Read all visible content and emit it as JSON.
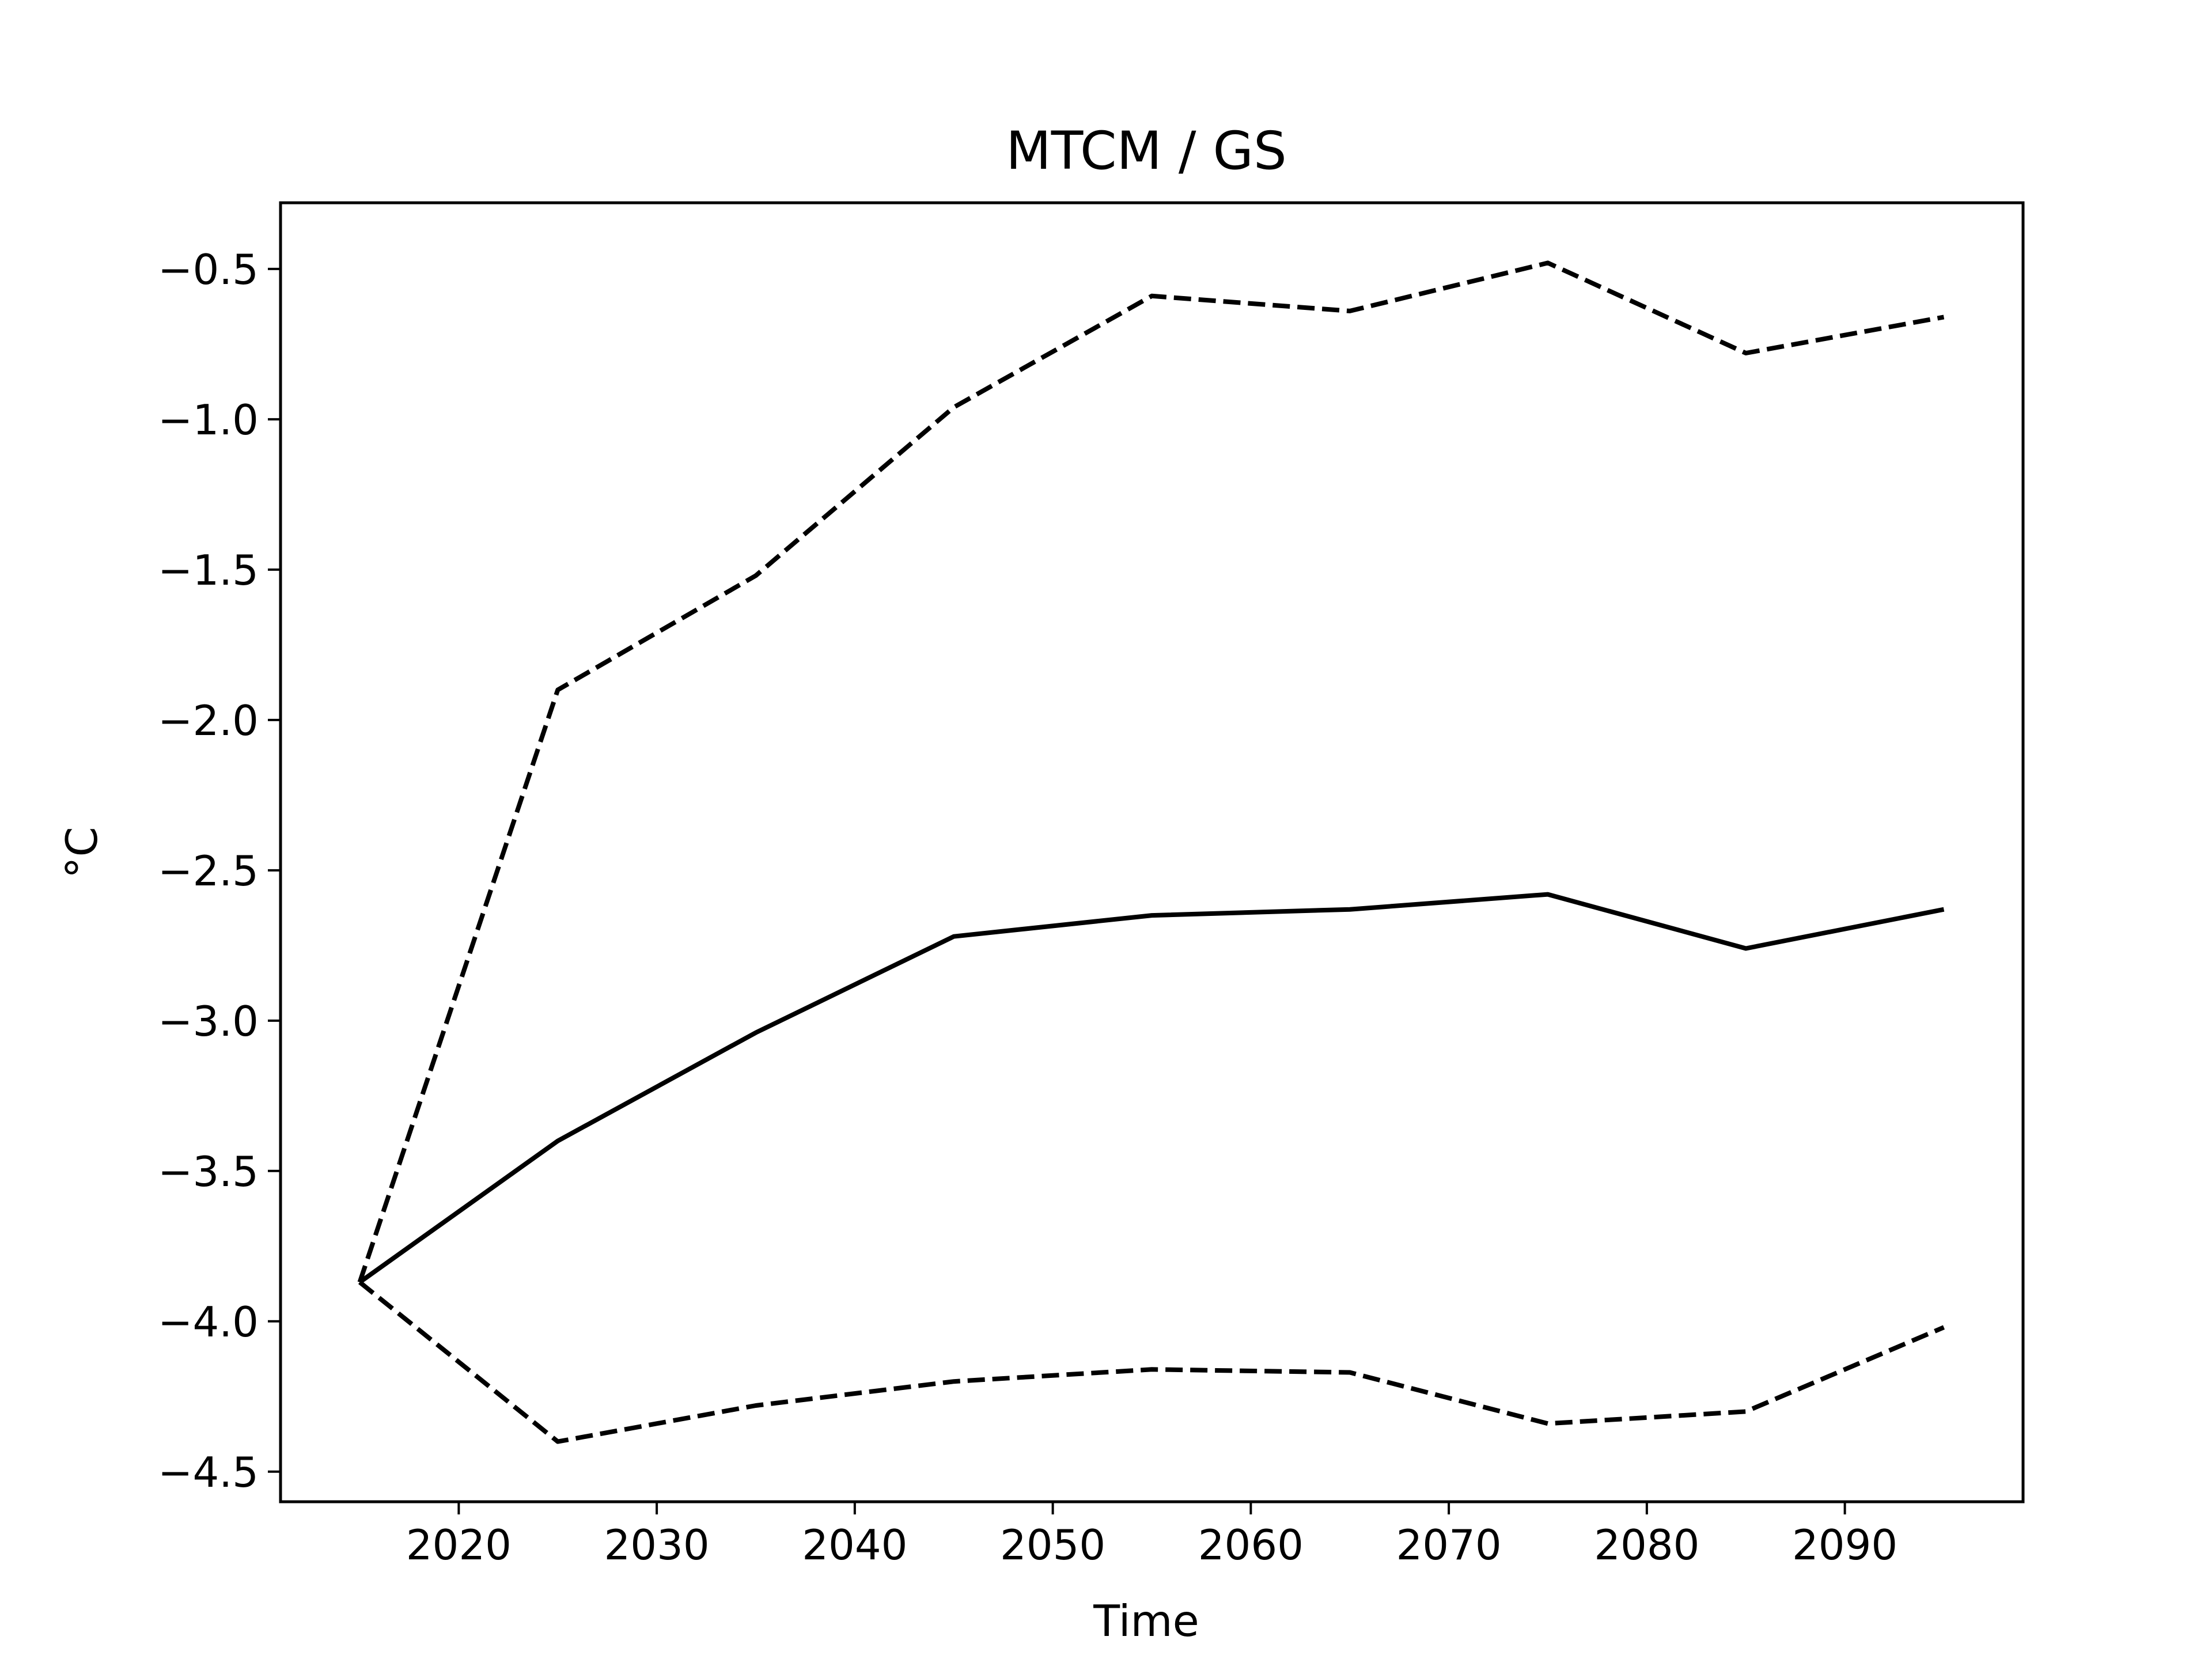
{
  "chart_data": {
    "type": "line",
    "title": "MTCM / GS",
    "xlabel": "Time",
    "ylabel": "°C",
    "xlim": [
      2011,
      2099
    ],
    "ylim": [
      -4.6,
      -0.28
    ],
    "x_ticks": [
      2020,
      2030,
      2040,
      2050,
      2060,
      2070,
      2080,
      2090
    ],
    "y_ticks": [
      -0.5,
      -1.0,
      -1.5,
      -2.0,
      -2.5,
      -3.0,
      -3.5,
      -4.0,
      -4.5
    ],
    "x_tick_labels": [
      "2020",
      "2030",
      "2040",
      "2050",
      "2060",
      "2070",
      "2080",
      "2090"
    ],
    "y_tick_labels": [
      "−0.5",
      "−1.0",
      "−1.5",
      "−2.0",
      "−2.5",
      "−3.0",
      "−3.5",
      "−4.0",
      "−4.5"
    ],
    "grid": false,
    "x": [
      2015,
      2025,
      2035,
      2045,
      2055,
      2065,
      2075,
      2085,
      2095
    ],
    "series": [
      {
        "style": "solid",
        "color": "#000000",
        "values": [
          -3.87,
          -3.4,
          -3.04,
          -2.72,
          -2.65,
          -2.63,
          -2.58,
          -2.76,
          -2.63
        ]
      },
      {
        "style": "dashed",
        "color": "#000000",
        "values": [
          -3.87,
          -1.9,
          -1.52,
          -0.96,
          -0.59,
          -0.64,
          -0.48,
          -0.78,
          -0.66
        ]
      },
      {
        "style": "dashed",
        "color": "#000000",
        "values": [
          -3.87,
          -4.4,
          -4.28,
          -4.2,
          -4.16,
          -4.17,
          -4.34,
          -4.3,
          -4.02
        ]
      }
    ]
  }
}
